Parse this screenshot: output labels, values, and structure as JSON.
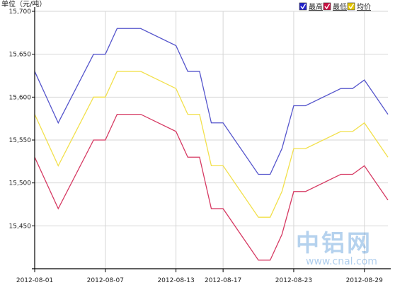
{
  "unit_label": "单位（元/吨）",
  "watermark": {
    "cn": "中铝网",
    "url": "www.cnal.com"
  },
  "legend": {
    "items": [
      {
        "label": "最高",
        "color": "#5555cc",
        "checkbox_color": "#2222cc"
      },
      {
        "label": "最低",
        "color": "#d63a63",
        "checkbox_color": "#cc1144"
      },
      {
        "label": "均价",
        "color": "#f2e04b",
        "checkbox_color": "#e6c800"
      }
    ]
  },
  "chart_data": {
    "type": "line",
    "x": [
      "2012-08-01",
      "2012-08-03",
      "2012-08-06",
      "2012-08-07",
      "2012-08-08",
      "2012-08-09",
      "2012-08-10",
      "2012-08-13",
      "2012-08-14",
      "2012-08-15",
      "2012-08-16",
      "2012-08-17",
      "2012-08-20",
      "2012-08-21",
      "2012-08-22",
      "2012-08-23",
      "2012-08-24",
      "2012-08-27",
      "2012-08-28",
      "2012-08-29",
      "2012-08-31"
    ],
    "x_tick_labels": [
      "2012-08-01",
      "2012-08-07",
      "2012-08-13",
      "2012-08-17",
      "2012-08-23",
      "2012-08-29"
    ],
    "y_ticks": [
      15450,
      15500,
      15550,
      15600,
      15650,
      15700
    ],
    "y_tick_labels": [
      "15,450",
      "15,500",
      "15,550",
      "15,600",
      "15,650",
      "15,700"
    ],
    "ylim": [
      15400,
      15700
    ],
    "grid": true,
    "legend_position": "top-right",
    "series": [
      {
        "name": "最高",
        "color": "#5555cc",
        "values": [
          15630,
          15570,
          15650,
          15650,
          15680,
          15680,
          15680,
          15660,
          15630,
          15630,
          15570,
          15570,
          15510,
          15510,
          15540,
          15590,
          15590,
          15610,
          15610,
          15620,
          15580
        ]
      },
      {
        "name": "最低",
        "color": "#d63a63",
        "values": [
          15530,
          15470,
          15550,
          15550,
          15580,
          15580,
          15580,
          15560,
          15530,
          15530,
          15470,
          15470,
          15410,
          15410,
          15440,
          15490,
          15490,
          15510,
          15510,
          15520,
          15480
        ]
      },
      {
        "name": "均价",
        "color": "#f2e04b",
        "values": [
          15580,
          15520,
          15600,
          15600,
          15630,
          15630,
          15630,
          15610,
          15580,
          15580,
          15520,
          15520,
          15460,
          15460,
          15490,
          15540,
          15540,
          15560,
          15560,
          15570,
          15530
        ]
      }
    ]
  }
}
